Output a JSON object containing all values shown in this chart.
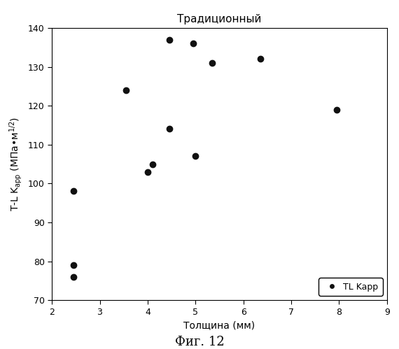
{
  "title": "Традиционный",
  "xlabel": "Толщина (мм)",
  "caption": "Фиг. 12",
  "legend_label": "TL Kapp",
  "xlim": [
    2,
    9
  ],
  "ylim": [
    70,
    140
  ],
  "xticks": [
    2,
    3,
    4,
    5,
    6,
    7,
    8,
    9
  ],
  "yticks": [
    70,
    80,
    90,
    100,
    110,
    120,
    130,
    140
  ],
  "x_data": [
    2.45,
    2.45,
    2.45,
    3.55,
    4.0,
    4.1,
    4.45,
    4.45,
    4.95,
    5.0,
    5.35,
    6.35,
    7.95
  ],
  "y_data": [
    98,
    79,
    76,
    124,
    103,
    105,
    137,
    114,
    136,
    107,
    131,
    132,
    119
  ],
  "marker": "o",
  "marker_color": "#111111",
  "marker_size": 6,
  "background_color": "#ffffff",
  "title_fontsize": 11,
  "label_fontsize": 10,
  "tick_fontsize": 9,
  "caption_fontsize": 13
}
